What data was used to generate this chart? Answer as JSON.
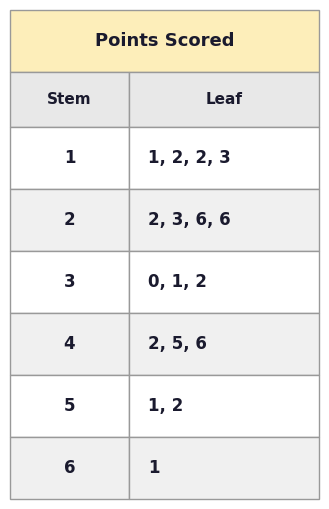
{
  "title": "Points Scored",
  "header": [
    "Stem",
    "Leaf"
  ],
  "rows": [
    [
      "1",
      "1, 2, 2, 3"
    ],
    [
      "2",
      "2, 3, 6, 6"
    ],
    [
      "3",
      "0, 1, 2"
    ],
    [
      "4",
      "2, 5, 6"
    ],
    [
      "5",
      "1, 2"
    ],
    [
      "6",
      "1"
    ]
  ],
  "title_bg": "#FDEEBA",
  "header_bg": "#E8E8E8",
  "row_bg_odd": "#FFFFFF",
  "row_bg_even": "#F0F0F0",
  "border_color": "#999999",
  "text_color": "#1a1a2e",
  "title_fontsize": 13,
  "header_fontsize": 11,
  "data_fontsize": 12,
  "col_split": 0.385
}
